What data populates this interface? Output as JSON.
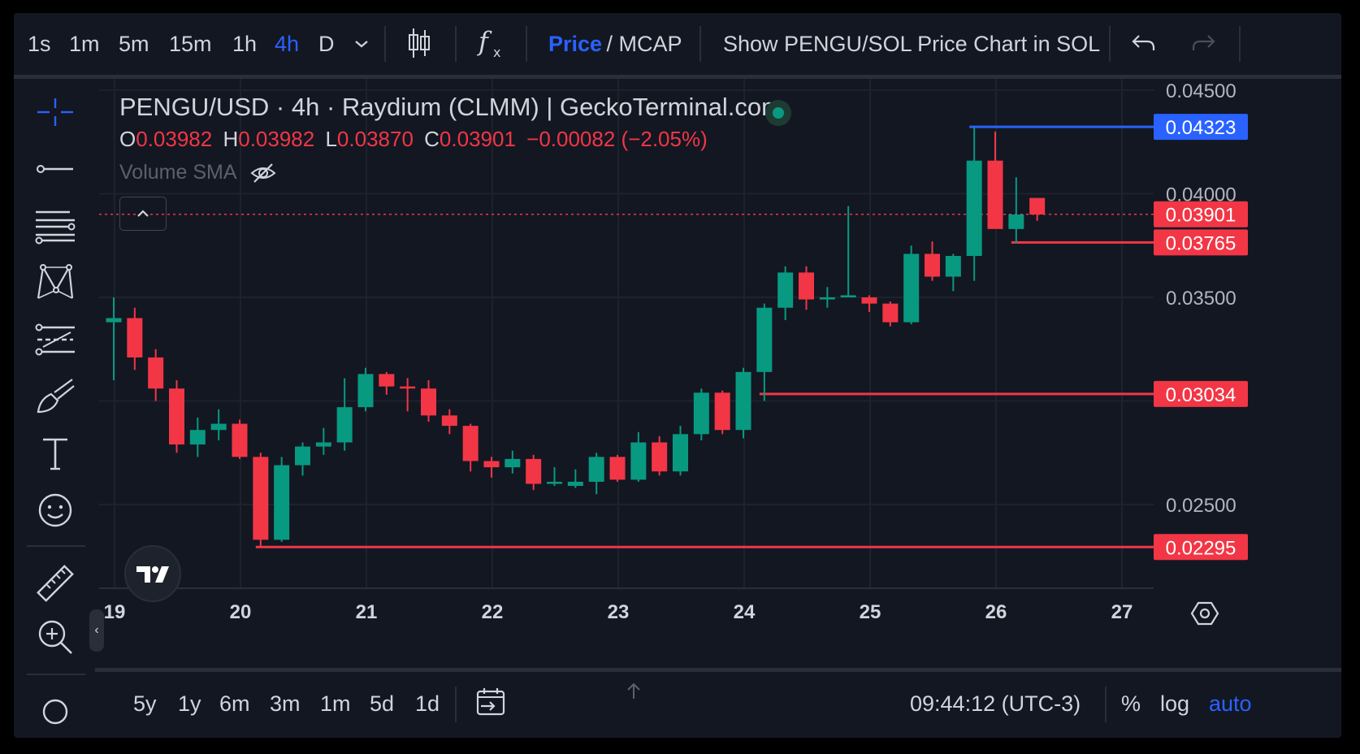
{
  "toolbar": {
    "intervals": [
      "1s",
      "1m",
      "5m",
      "15m",
      "1h",
      "4h",
      "D"
    ],
    "active_interval": "4h",
    "price_label": "Price",
    "mcap_label": " / MCAP",
    "show_sol_label": "Show PENGU/SOL Price Chart in SOL"
  },
  "legend": {
    "title": "PENGU/USD · 4h · Raydium (CLMM) | GeckoTerminal.com",
    "o_key": "O",
    "o_val": "0.03982",
    "h_key": "H",
    "h_val": "0.03982",
    "l_key": "L",
    "l_val": "0.03870",
    "c_key": "C",
    "c_val": "0.03901",
    "change": "−0.00082 (−2.05%)",
    "volume_label": "Volume SMA"
  },
  "chart_data": {
    "type": "candlestick",
    "x_ticks": [
      "19",
      "20",
      "21",
      "22",
      "23",
      "24",
      "25",
      "26",
      "27"
    ],
    "y_ticks": [
      "0.04500",
      "0.04000",
      "0.03500",
      "0.02500"
    ],
    "ylim": [
      0.022,
      0.0455
    ],
    "candles": [
      {
        "o": 0.0338,
        "h": 0.035,
        "l": 0.031,
        "c": 0.034
      },
      {
        "o": 0.034,
        "h": 0.0345,
        "l": 0.0315,
        "c": 0.0321
      },
      {
        "o": 0.0321,
        "h": 0.0325,
        "l": 0.03,
        "c": 0.0306
      },
      {
        "o": 0.0306,
        "h": 0.031,
        "l": 0.0275,
        "c": 0.0279
      },
      {
        "o": 0.0279,
        "h": 0.0292,
        "l": 0.0273,
        "c": 0.0286
      },
      {
        "o": 0.0286,
        "h": 0.0296,
        "l": 0.0281,
        "c": 0.0289
      },
      {
        "o": 0.0289,
        "h": 0.0291,
        "l": 0.0272,
        "c": 0.0273
      },
      {
        "o": 0.0273,
        "h": 0.0275,
        "l": 0.0229,
        "c": 0.0233
      },
      {
        "o": 0.0233,
        "h": 0.0273,
        "l": 0.0232,
        "c": 0.0269
      },
      {
        "o": 0.0269,
        "h": 0.028,
        "l": 0.0264,
        "c": 0.0278
      },
      {
        "o": 0.0278,
        "h": 0.0287,
        "l": 0.0274,
        "c": 0.028
      },
      {
        "o": 0.028,
        "h": 0.0311,
        "l": 0.0276,
        "c": 0.0297
      },
      {
        "o": 0.0297,
        "h": 0.0316,
        "l": 0.0295,
        "c": 0.0313
      },
      {
        "o": 0.0313,
        "h": 0.0314,
        "l": 0.0303,
        "c": 0.0307
      },
      {
        "o": 0.0307,
        "h": 0.0311,
        "l": 0.0295,
        "c": 0.0306
      },
      {
        "o": 0.0306,
        "h": 0.031,
        "l": 0.029,
        "c": 0.0293
      },
      {
        "o": 0.0293,
        "h": 0.0296,
        "l": 0.0284,
        "c": 0.0288
      },
      {
        "o": 0.0288,
        "h": 0.0289,
        "l": 0.0266,
        "c": 0.0271
      },
      {
        "o": 0.0271,
        "h": 0.0273,
        "l": 0.0263,
        "c": 0.0268
      },
      {
        "o": 0.0268,
        "h": 0.0276,
        "l": 0.0265,
        "c": 0.0272
      },
      {
        "o": 0.0272,
        "h": 0.0274,
        "l": 0.0257,
        "c": 0.026
      },
      {
        "o": 0.026,
        "h": 0.0268,
        "l": 0.0259,
        "c": 0.0261
      },
      {
        "o": 0.0259,
        "h": 0.0267,
        "l": 0.0258,
        "c": 0.0261
      },
      {
        "o": 0.0261,
        "h": 0.0275,
        "l": 0.0255,
        "c": 0.0273
      },
      {
        "o": 0.0273,
        "h": 0.0274,
        "l": 0.0261,
        "c": 0.0262
      },
      {
        "o": 0.0262,
        "h": 0.0285,
        "l": 0.0261,
        "c": 0.028
      },
      {
        "o": 0.028,
        "h": 0.0283,
        "l": 0.0264,
        "c": 0.0266
      },
      {
        "o": 0.0266,
        "h": 0.0288,
        "l": 0.0264,
        "c": 0.0284
      },
      {
        "o": 0.0284,
        "h": 0.0306,
        "l": 0.0281,
        "c": 0.0304
      },
      {
        "o": 0.0304,
        "h": 0.0305,
        "l": 0.0284,
        "c": 0.0286
      },
      {
        "o": 0.0286,
        "h": 0.0316,
        "l": 0.0282,
        "c": 0.0314
      },
      {
        "o": 0.0314,
        "h": 0.0347,
        "l": 0.03,
        "c": 0.0345
      },
      {
        "o": 0.0345,
        "h": 0.0365,
        "l": 0.0339,
        "c": 0.0362
      },
      {
        "o": 0.0362,
        "h": 0.0365,
        "l": 0.0344,
        "c": 0.0349
      },
      {
        "o": 0.0349,
        "h": 0.0355,
        "l": 0.0345,
        "c": 0.035
      },
      {
        "o": 0.035,
        "h": 0.0394,
        "l": 0.0351,
        "c": 0.0351
      },
      {
        "o": 0.035,
        "h": 0.0351,
        "l": 0.0343,
        "c": 0.0347
      },
      {
        "o": 0.0347,
        "h": 0.0348,
        "l": 0.0336,
        "c": 0.0338
      },
      {
        "o": 0.0338,
        "h": 0.0375,
        "l": 0.0337,
        "c": 0.0371
      },
      {
        "o": 0.0371,
        "h": 0.0377,
        "l": 0.0358,
        "c": 0.036
      },
      {
        "o": 0.036,
        "h": 0.0371,
        "l": 0.0353,
        "c": 0.037
      },
      {
        "o": 0.037,
        "h": 0.0432,
        "l": 0.0358,
        "c": 0.0416
      },
      {
        "o": 0.0416,
        "h": 0.043,
        "l": 0.0385,
        "c": 0.0383
      },
      {
        "o": 0.0383,
        "h": 0.0408,
        "l": 0.0376,
        "c": 0.039
      },
      {
        "o": 0.0398,
        "h": 0.0398,
        "l": 0.0387,
        "c": 0.039
      }
    ],
    "horizontal_lines": [
      {
        "value": 0.04323,
        "label": "0.04323",
        "color": "#2962ff"
      },
      {
        "value": 0.03901,
        "label": "0.03901",
        "color": "#f23645",
        "dotted": true
      },
      {
        "value": 0.03765,
        "label": "0.03765",
        "color": "#f23645"
      },
      {
        "value": 0.03034,
        "label": "0.03034",
        "color": "#f23645"
      },
      {
        "value": 0.02295,
        "label": "0.02295",
        "color": "#f23645"
      }
    ],
    "up_color": "#089981",
    "down_color": "#f23645"
  },
  "bottombar": {
    "ranges": [
      "5y",
      "1y",
      "6m",
      "3m",
      "1m",
      "5d",
      "1d"
    ],
    "clock": "09:44:12 (UTC-3)",
    "percent": "%",
    "log": "log",
    "auto": "auto"
  }
}
